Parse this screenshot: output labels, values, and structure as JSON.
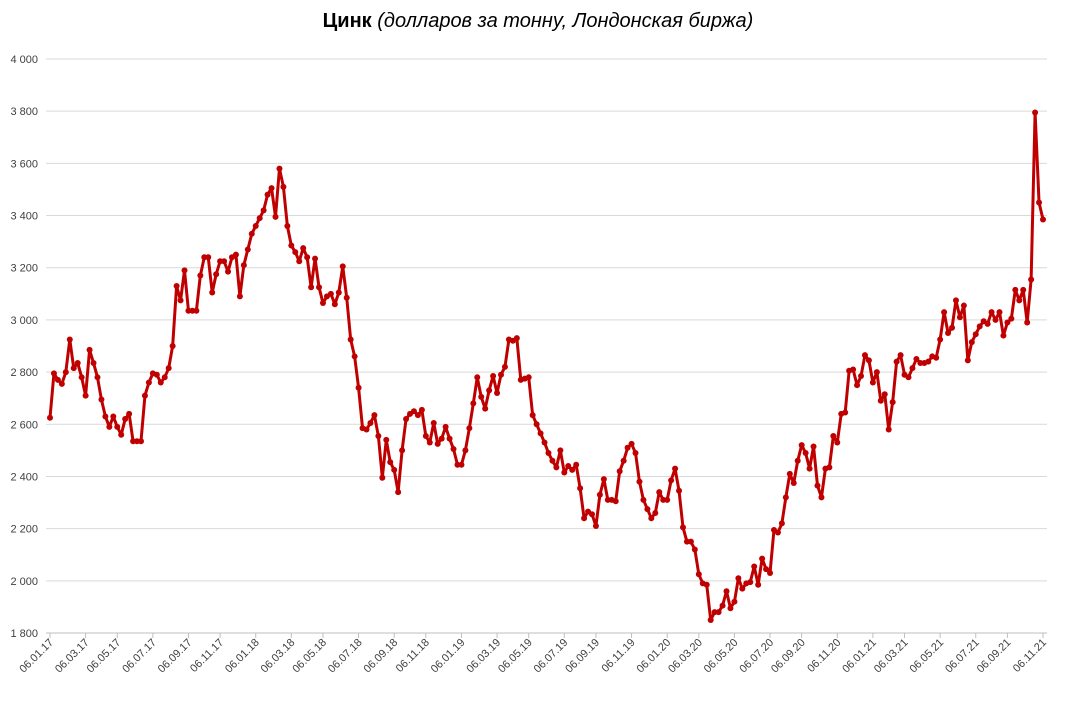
{
  "chart_data": {
    "type": "line",
    "title": "Цинк",
    "subtitle": "(долларов за тонну, Лондонская биржа)",
    "categories": [
      "06.01.17",
      null,
      null,
      null,
      null,
      null,
      null,
      null,
      null,
      "06.03.17",
      null,
      null,
      null,
      null,
      null,
      null,
      null,
      "06.05.17",
      null,
      null,
      null,
      null,
      null,
      null,
      null,
      null,
      "06.07.17",
      null,
      null,
      null,
      null,
      null,
      null,
      null,
      null,
      "06.09.17",
      null,
      null,
      null,
      null,
      null,
      null,
      null,
      "06.11.17",
      null,
      null,
      null,
      null,
      null,
      null,
      null,
      null,
      "06.01.18",
      null,
      null,
      null,
      null,
      null,
      null,
      null,
      null,
      "06.03.18",
      null,
      null,
      null,
      null,
      null,
      null,
      null,
      "06.05.18",
      null,
      null,
      null,
      null,
      null,
      null,
      null,
      null,
      "06.07.18",
      null,
      null,
      null,
      null,
      null,
      null,
      null,
      null,
      "06.09.18",
      null,
      null,
      null,
      null,
      null,
      null,
      null,
      "06.11.18",
      null,
      null,
      null,
      null,
      null,
      null,
      null,
      null,
      "06.01.19",
      null,
      null,
      null,
      null,
      null,
      null,
      null,
      null,
      "06.03.19",
      null,
      null,
      null,
      null,
      null,
      null,
      null,
      "06.05.19",
      null,
      null,
      null,
      null,
      null,
      null,
      null,
      null,
      "06.07.19",
      null,
      null,
      null,
      null,
      null,
      null,
      null,
      "06.09.19",
      null,
      null,
      null,
      null,
      null,
      null,
      null,
      null,
      "06.11.19",
      null,
      null,
      null,
      null,
      null,
      null,
      null,
      null,
      "06.01.20",
      null,
      null,
      null,
      null,
      null,
      null,
      null,
      "06.03.20",
      null,
      null,
      null,
      null,
      null,
      null,
      null,
      null,
      "06.05.20",
      null,
      null,
      null,
      null,
      null,
      null,
      null,
      null,
      "06.07.20",
      null,
      null,
      null,
      null,
      null,
      null,
      null,
      "06.09.20",
      null,
      null,
      null,
      null,
      null,
      null,
      null,
      null,
      "06.11.20",
      null,
      null,
      null,
      null,
      null,
      null,
      null,
      null,
      "06.01.21",
      null,
      null,
      null,
      null,
      null,
      null,
      null,
      "06.03.21",
      null,
      null,
      null,
      null,
      null,
      null,
      null,
      null,
      "06.05.21",
      null,
      null,
      null,
      null,
      null,
      null,
      null,
      null,
      "06.07.21",
      null,
      null,
      null,
      null,
      null,
      null,
      null,
      "06.09.21",
      null,
      null,
      null,
      null,
      null,
      null,
      null,
      null,
      "06.11.21"
    ],
    "series": [
      {
        "name": "Цинк",
        "color": "#c00000",
        "values": [
          2625,
          2795,
          2770,
          2755,
          2800,
          2925,
          2815,
          2835,
          2780,
          2710,
          2885,
          2835,
          2780,
          2695,
          2630,
          2590,
          2630,
          2590,
          2560,
          2620,
          2640,
          2535,
          2535,
          2535,
          2710,
          2760,
          2795,
          2790,
          2760,
          2780,
          2815,
          2900,
          3130,
          3075,
          3190,
          3035,
          3035,
          3035,
          3170,
          3240,
          3240,
          3105,
          3175,
          3225,
          3225,
          3185,
          3240,
          3250,
          3090,
          3210,
          3270,
          3330,
          3360,
          3390,
          3420,
          3480,
          3505,
          3395,
          3580,
          3510,
          3360,
          3285,
          3260,
          3225,
          3275,
          3240,
          3125,
          3235,
          3125,
          3065,
          3090,
          3100,
          3060,
          3105,
          3205,
          3085,
          2925,
          2860,
          2740,
          2585,
          2580,
          2605,
          2635,
          2555,
          2395,
          2540,
          2455,
          2425,
          2340,
          2500,
          2620,
          2640,
          2650,
          2635,
          2655,
          2555,
          2530,
          2605,
          2525,
          2545,
          2590,
          2545,
          2505,
          2445,
          2445,
          2500,
          2585,
          2680,
          2780,
          2705,
          2660,
          2730,
          2785,
          2720,
          2790,
          2820,
          2925,
          2920,
          2930,
          2770,
          2775,
          2780,
          2635,
          2600,
          2565,
          2530,
          2490,
          2460,
          2435,
          2500,
          2415,
          2440,
          2425,
          2445,
          2355,
          2240,
          2265,
          2255,
          2210,
          2330,
          2390,
          2310,
          2310,
          2305,
          2420,
          2460,
          2510,
          2525,
          2490,
          2380,
          2310,
          2275,
          2240,
          2260,
          2340,
          2310,
          2310,
          2385,
          2430,
          2345,
          2205,
          2150,
          2150,
          2120,
          2025,
          1990,
          1985,
          1850,
          1880,
          1880,
          1905,
          1960,
          1895,
          1920,
          2010,
          1970,
          1990,
          1995,
          2055,
          1985,
          2085,
          2045,
          2030,
          2195,
          2185,
          2220,
          2320,
          2410,
          2375,
          2460,
          2520,
          2490,
          2430,
          2515,
          2365,
          2320,
          2430,
          2435,
          2555,
          2530,
          2640,
          2645,
          2805,
          2810,
          2750,
          2785,
          2865,
          2845,
          2760,
          2800,
          2690,
          2715,
          2580,
          2685,
          2840,
          2865,
          2790,
          2780,
          2815,
          2850,
          2835,
          2835,
          2840,
          2860,
          2855,
          2925,
          3030,
          2950,
          2970,
          3075,
          3010,
          3055,
          2845,
          2915,
          2945,
          2975,
          2995,
          2985,
          3030,
          3000,
          3030,
          2940,
          2990,
          3005,
          3115,
          3075,
          3115,
          2990,
          3155,
          3795,
          3450,
          3385
        ]
      }
    ],
    "ylim": [
      1800,
      4000
    ],
    "yticks": [
      {
        "value": 1800,
        "label": "1 800"
      },
      {
        "value": 2000,
        "label": "2 000"
      },
      {
        "value": 2200,
        "label": "2 200"
      },
      {
        "value": 2400,
        "label": "2 400"
      },
      {
        "value": 2600,
        "label": "2 600"
      },
      {
        "value": 2800,
        "label": "2 800"
      },
      {
        "value": 3000,
        "label": "3 000"
      },
      {
        "value": 3200,
        "label": "3 200"
      },
      {
        "value": 3400,
        "label": "3 400"
      },
      {
        "value": 3600,
        "label": "3 600"
      },
      {
        "value": 3800,
        "label": "3 800"
      },
      {
        "value": 4000,
        "label": "4 000"
      }
    ],
    "grid": true
  }
}
